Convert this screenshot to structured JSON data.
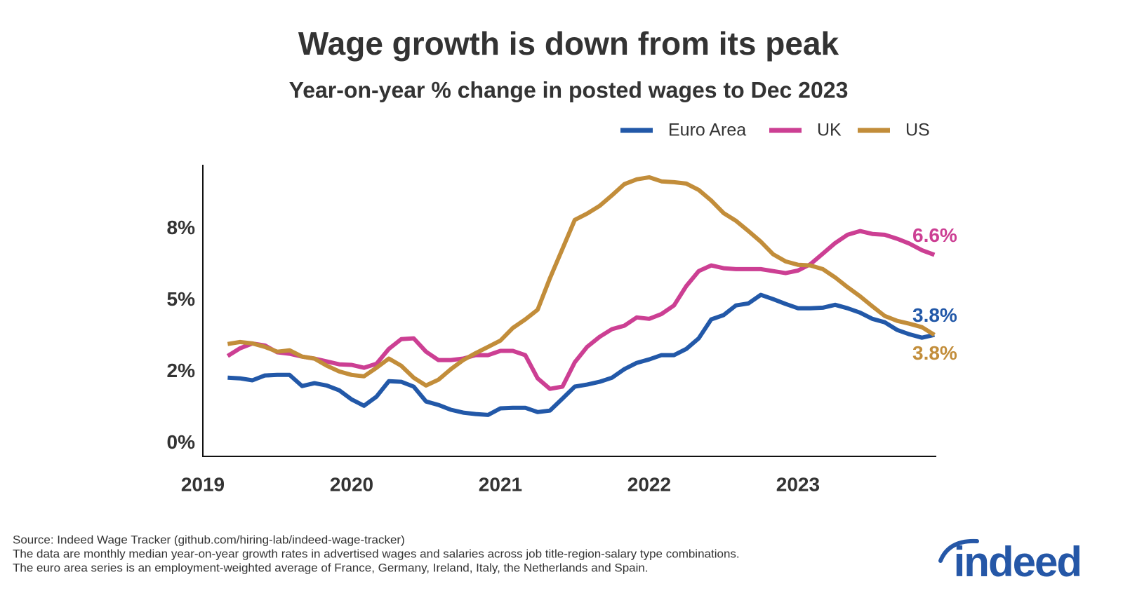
{
  "chart_data": {
    "type": "line",
    "title": "Wage growth is down from its peak",
    "subtitle": "Year-on-year % change in posted wages to Dec 2023",
    "x": [
      2019.167,
      2019.25,
      2019.333,
      2019.417,
      2019.5,
      2019.583,
      2019.667,
      2019.75,
      2019.833,
      2019.917,
      2020.0,
      2020.083,
      2020.167,
      2020.25,
      2020.333,
      2020.417,
      2020.5,
      2020.583,
      2020.667,
      2020.75,
      2020.833,
      2020.917,
      2021.0,
      2021.083,
      2021.167,
      2021.25,
      2021.333,
      2021.417,
      2021.5,
      2021.583,
      2021.667,
      2021.75,
      2021.833,
      2021.917,
      2022.0,
      2022.083,
      2022.167,
      2022.25,
      2022.333,
      2022.417,
      2022.5,
      2022.583,
      2022.667,
      2022.75,
      2022.833,
      2022.917,
      2023.0,
      2023.083,
      2023.167,
      2023.25,
      2023.333,
      2023.417,
      2023.5,
      2023.583,
      2023.667,
      2023.75,
      2023.833,
      2023.917
    ],
    "series": [
      {
        "name": "Euro Area",
        "color": "#2258a8",
        "last_label": "3.8%",
        "values": [
          2.3,
          2.28,
          2.21,
          2.38,
          2.4,
          2.4,
          2.01,
          2.11,
          2.03,
          1.86,
          1.54,
          1.32,
          1.64,
          2.18,
          2.16,
          1.99,
          1.47,
          1.35,
          1.18,
          1.08,
          1.03,
          1.0,
          1.23,
          1.25,
          1.25,
          1.1,
          1.15,
          1.57,
          1.99,
          2.06,
          2.16,
          2.3,
          2.6,
          2.82,
          2.94,
          3.09,
          3.09,
          3.31,
          3.68,
          4.34,
          4.49,
          4.83,
          4.9,
          5.2,
          5.05,
          4.88,
          4.73,
          4.73,
          4.75,
          4.85,
          4.73,
          4.58,
          4.36,
          4.24,
          3.97,
          3.82,
          3.7,
          3.8
        ]
      },
      {
        "name": "UK",
        "color": "#cc3f93",
        "last_label": "6.6%",
        "values": [
          3.06,
          3.33,
          3.5,
          3.43,
          3.19,
          3.14,
          3.04,
          2.97,
          2.87,
          2.77,
          2.75,
          2.65,
          2.79,
          3.31,
          3.65,
          3.68,
          3.21,
          2.92,
          2.92,
          2.97,
          3.09,
          3.09,
          3.24,
          3.24,
          3.09,
          2.28,
          1.91,
          1.99,
          2.84,
          3.38,
          3.73,
          4.0,
          4.12,
          4.41,
          4.36,
          4.53,
          4.83,
          5.51,
          6.03,
          6.23,
          6.13,
          6.1,
          6.1,
          6.1,
          6.03,
          5.96,
          6.05,
          6.27,
          6.64,
          7.01,
          7.3,
          7.43,
          7.33,
          7.3,
          7.16,
          6.99,
          6.76,
          6.6
        ]
      },
      {
        "name": "US",
        "color": "#c28d3a",
        "last_label": "3.8%",
        "values": [
          3.48,
          3.55,
          3.5,
          3.38,
          3.21,
          3.26,
          3.04,
          2.97,
          2.72,
          2.52,
          2.4,
          2.35,
          2.65,
          2.97,
          2.72,
          2.3,
          2.03,
          2.23,
          2.6,
          2.92,
          3.16,
          3.38,
          3.6,
          4.04,
          4.34,
          4.68,
          5.78,
          6.81,
          7.82,
          8.04,
          8.31,
          8.68,
          9.07,
          9.24,
          9.31,
          9.17,
          9.14,
          9.09,
          8.87,
          8.5,
          8.06,
          7.79,
          7.43,
          7.06,
          6.62,
          6.37,
          6.25,
          6.23,
          6.1,
          5.81,
          5.47,
          5.15,
          4.8,
          4.46,
          4.29,
          4.19,
          4.07,
          3.8
        ]
      }
    ],
    "xlim": [
      2019,
      2023.925
    ],
    "xticks": [
      2019,
      2020,
      2021,
      2022,
      2023
    ],
    "ylim": [
      -0.45,
      9.75
    ],
    "yticks": [
      {
        "value": 0,
        "label": "0%"
      },
      {
        "value": 2.5,
        "label": "2%"
      },
      {
        "value": 5,
        "label": "5%"
      },
      {
        "value": 7.5,
        "label": "8%"
      }
    ],
    "grid": false,
    "legend": "top-right",
    "notes": [
      "Source: Indeed Wage Tracker (github.com/hiring-lab/indeed-wage-tracker)",
      "The data are monthly median year-on-year growth rates in advertised wages and salaries across job title-region-salary type combinations.",
      "The euro area series is an employment-weighted average of France, Germany, Ireland, Italy, the Netherlands and Spain."
    ],
    "logo": "indeed"
  }
}
